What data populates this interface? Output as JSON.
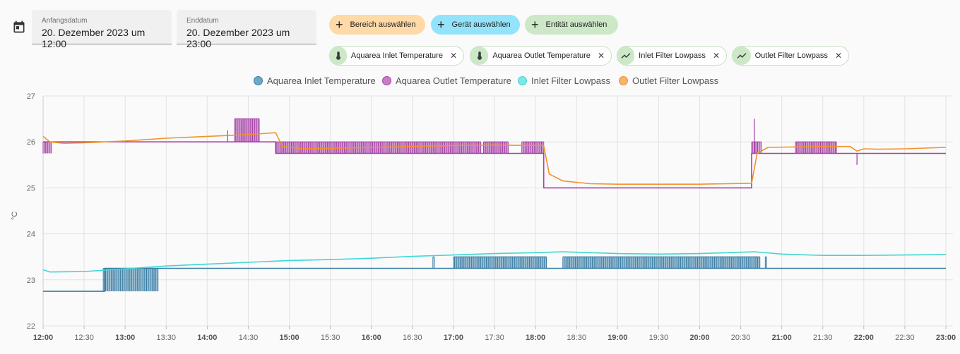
{
  "date_range": {
    "start_label": "Anfangsdatum",
    "start_value": "20. Dezember 2023 um 12:00",
    "end_label": "Enddatum",
    "end_value": "20. Dezember 2023 um 23:00"
  },
  "target_buttons": [
    {
      "label": "Bereich auswählen",
      "color": "#ffd9a6"
    },
    {
      "label": "Gerät auswählen",
      "color": "#93e4fb"
    },
    {
      "label": "Entität auswählen",
      "color": "#cde8c7"
    }
  ],
  "chips": [
    {
      "label": "Aquarea Inlet Temperature",
      "icon": "thermometer-icon"
    },
    {
      "label": "Aquarea Outlet Temperature",
      "icon": "thermometer-icon"
    },
    {
      "label": "Inlet Filter Lowpass",
      "icon": "chart-line-icon"
    },
    {
      "label": "Outlet Filter Lowpass",
      "icon": "chart-line-icon"
    }
  ],
  "chart_data": {
    "type": "line",
    "ylabel": "°C",
    "ylim": [
      22,
      27
    ],
    "yticks": [
      "22",
      "23",
      "24",
      "25",
      "26",
      "27"
    ],
    "xlim": [
      "12:00",
      "23:00"
    ],
    "xticks": [
      {
        "label": "12:00",
        "bold": true
      },
      {
        "label": "12:30",
        "bold": false
      },
      {
        "label": "13:00",
        "bold": true
      },
      {
        "label": "13:30",
        "bold": false
      },
      {
        "label": "14:00",
        "bold": true
      },
      {
        "label": "14:30",
        "bold": false
      },
      {
        "label": "15:00",
        "bold": true
      },
      {
        "label": "15:30",
        "bold": false
      },
      {
        "label": "16:00",
        "bold": true
      },
      {
        "label": "16:30",
        "bold": false
      },
      {
        "label": "17:00",
        "bold": true
      },
      {
        "label": "17:30",
        "bold": false
      },
      {
        "label": "18:00",
        "bold": true
      },
      {
        "label": "18:30",
        "bold": false
      },
      {
        "label": "19:00",
        "bold": true
      },
      {
        "label": "19:30",
        "bold": false
      },
      {
        "label": "20:00",
        "bold": true
      },
      {
        "label": "20:30",
        "bold": false
      },
      {
        "label": "21:00",
        "bold": true
      },
      {
        "label": "21:30",
        "bold": false
      },
      {
        "label": "22:00",
        "bold": true
      },
      {
        "label": "22:30",
        "bold": false
      },
      {
        "label": "23:00",
        "bold": true
      }
    ],
    "grid": true,
    "legend_position": "top-center",
    "series": [
      {
        "name": "Aquarea Inlet Temperature",
        "color": "#3a7ea6",
        "fill": "#6fa7c8",
        "style": "step",
        "points": [
          [
            "12:00",
            22.75
          ],
          [
            "12:45",
            22.75
          ],
          [
            "12:45",
            23.25
          ],
          [
            "13:24",
            23.25
          ],
          [
            "13:24",
            23.25
          ],
          [
            "23:00",
            23.25
          ]
        ],
        "flicker": [
          {
            "from": "12:44",
            "to": "13:24",
            "low": 22.75,
            "high": 23.25
          },
          {
            "from": "16:45",
            "to": "16:46",
            "low": 23.25,
            "high": 23.5
          },
          {
            "from": "17:00",
            "to": "18:08",
            "low": 23.25,
            "high": 23.5
          },
          {
            "from": "18:20",
            "to": "20:44",
            "low": 23.25,
            "high": 23.5
          },
          {
            "from": "20:48",
            "to": "20:49",
            "low": 23.25,
            "high": 23.5
          }
        ]
      },
      {
        "name": "Aquarea Outlet Temperature",
        "color": "#a541a6",
        "fill": "#c77ec7",
        "style": "step",
        "points": [
          [
            "12:00",
            26.0
          ],
          [
            "14:50",
            26.0
          ],
          [
            "14:50",
            25.75
          ],
          [
            "18:06",
            25.75
          ],
          [
            "18:06",
            25.0
          ],
          [
            "20:38",
            25.0
          ],
          [
            "20:38",
            25.75
          ],
          [
            "23:00",
            25.75
          ]
        ],
        "flicker": [
          {
            "from": "12:00",
            "to": "12:06",
            "low": 25.75,
            "high": 26.0
          },
          {
            "from": "14:15",
            "to": "14:15",
            "low": 26.0,
            "high": 26.25
          },
          {
            "from": "14:20",
            "to": "14:38",
            "low": 26.0,
            "high": 26.5
          },
          {
            "from": "14:50",
            "to": "17:20",
            "low": 25.75,
            "high": 26.0
          },
          {
            "from": "17:22",
            "to": "17:40",
            "low": 25.75,
            "high": 26.0
          },
          {
            "from": "17:50",
            "to": "18:06",
            "low": 25.75,
            "high": 26.0
          },
          {
            "from": "20:38",
            "to": "20:45",
            "low": 25.75,
            "high": 26.0
          },
          {
            "from": "20:40",
            "to": "20:40",
            "low": 25.75,
            "high": 26.5
          },
          {
            "from": "21:10",
            "to": "21:40",
            "low": 25.75,
            "high": 26.0
          },
          {
            "from": "21:55",
            "to": "21:55",
            "low": 25.5,
            "high": 25.75
          }
        ]
      },
      {
        "name": "Inlet Filter Lowpass",
        "color": "#3fd6d6",
        "fill": "#7ee6e6",
        "style": "line",
        "points": [
          [
            "12:00",
            23.22
          ],
          [
            "12:05",
            23.17
          ],
          [
            "12:30",
            23.18
          ],
          [
            "13:00",
            23.24
          ],
          [
            "13:30",
            23.3
          ],
          [
            "14:00",
            23.34
          ],
          [
            "14:30",
            23.38
          ],
          [
            "15:00",
            23.42
          ],
          [
            "15:30",
            23.44
          ],
          [
            "16:00",
            23.47
          ],
          [
            "16:30",
            23.51
          ],
          [
            "17:00",
            23.54
          ],
          [
            "17:30",
            23.57
          ],
          [
            "18:00",
            23.59
          ],
          [
            "18:20",
            23.61
          ],
          [
            "18:30",
            23.6
          ],
          [
            "19:00",
            23.57
          ],
          [
            "19:30",
            23.56
          ],
          [
            "20:00",
            23.57
          ],
          [
            "20:30",
            23.6
          ],
          [
            "20:40",
            23.61
          ],
          [
            "21:00",
            23.56
          ],
          [
            "21:30",
            23.53
          ],
          [
            "22:00",
            23.53
          ],
          [
            "22:30",
            23.54
          ],
          [
            "23:00",
            23.55
          ]
        ]
      },
      {
        "name": "Outlet Filter Lowpass",
        "color": "#f2922c",
        "fill": "#f7b26b",
        "style": "line",
        "points": [
          [
            "12:00",
            26.12
          ],
          [
            "12:05",
            26.0
          ],
          [
            "12:15",
            25.97
          ],
          [
            "12:30",
            25.98
          ],
          [
            "13:00",
            26.02
          ],
          [
            "13:30",
            26.08
          ],
          [
            "14:00",
            26.12
          ],
          [
            "14:30",
            26.16
          ],
          [
            "14:50",
            26.2
          ],
          [
            "14:55",
            25.9
          ],
          [
            "15:10",
            25.85
          ],
          [
            "15:30",
            25.86
          ],
          [
            "16:00",
            25.88
          ],
          [
            "16:30",
            25.9
          ],
          [
            "17:00",
            25.92
          ],
          [
            "17:30",
            25.93
          ],
          [
            "18:06",
            25.92
          ],
          [
            "18:10",
            25.3
          ],
          [
            "18:20",
            25.15
          ],
          [
            "18:40",
            25.09
          ],
          [
            "19:00",
            25.08
          ],
          [
            "19:30",
            25.08
          ],
          [
            "20:00",
            25.08
          ],
          [
            "20:38",
            25.1
          ],
          [
            "20:42",
            25.75
          ],
          [
            "20:50",
            25.88
          ],
          [
            "21:30",
            25.9
          ],
          [
            "21:50",
            25.9
          ],
          [
            "21:55",
            25.8
          ],
          [
            "22:00",
            25.85
          ],
          [
            "22:10",
            25.84
          ],
          [
            "22:30",
            25.85
          ],
          [
            "23:00",
            25.88
          ]
        ]
      }
    ]
  }
}
